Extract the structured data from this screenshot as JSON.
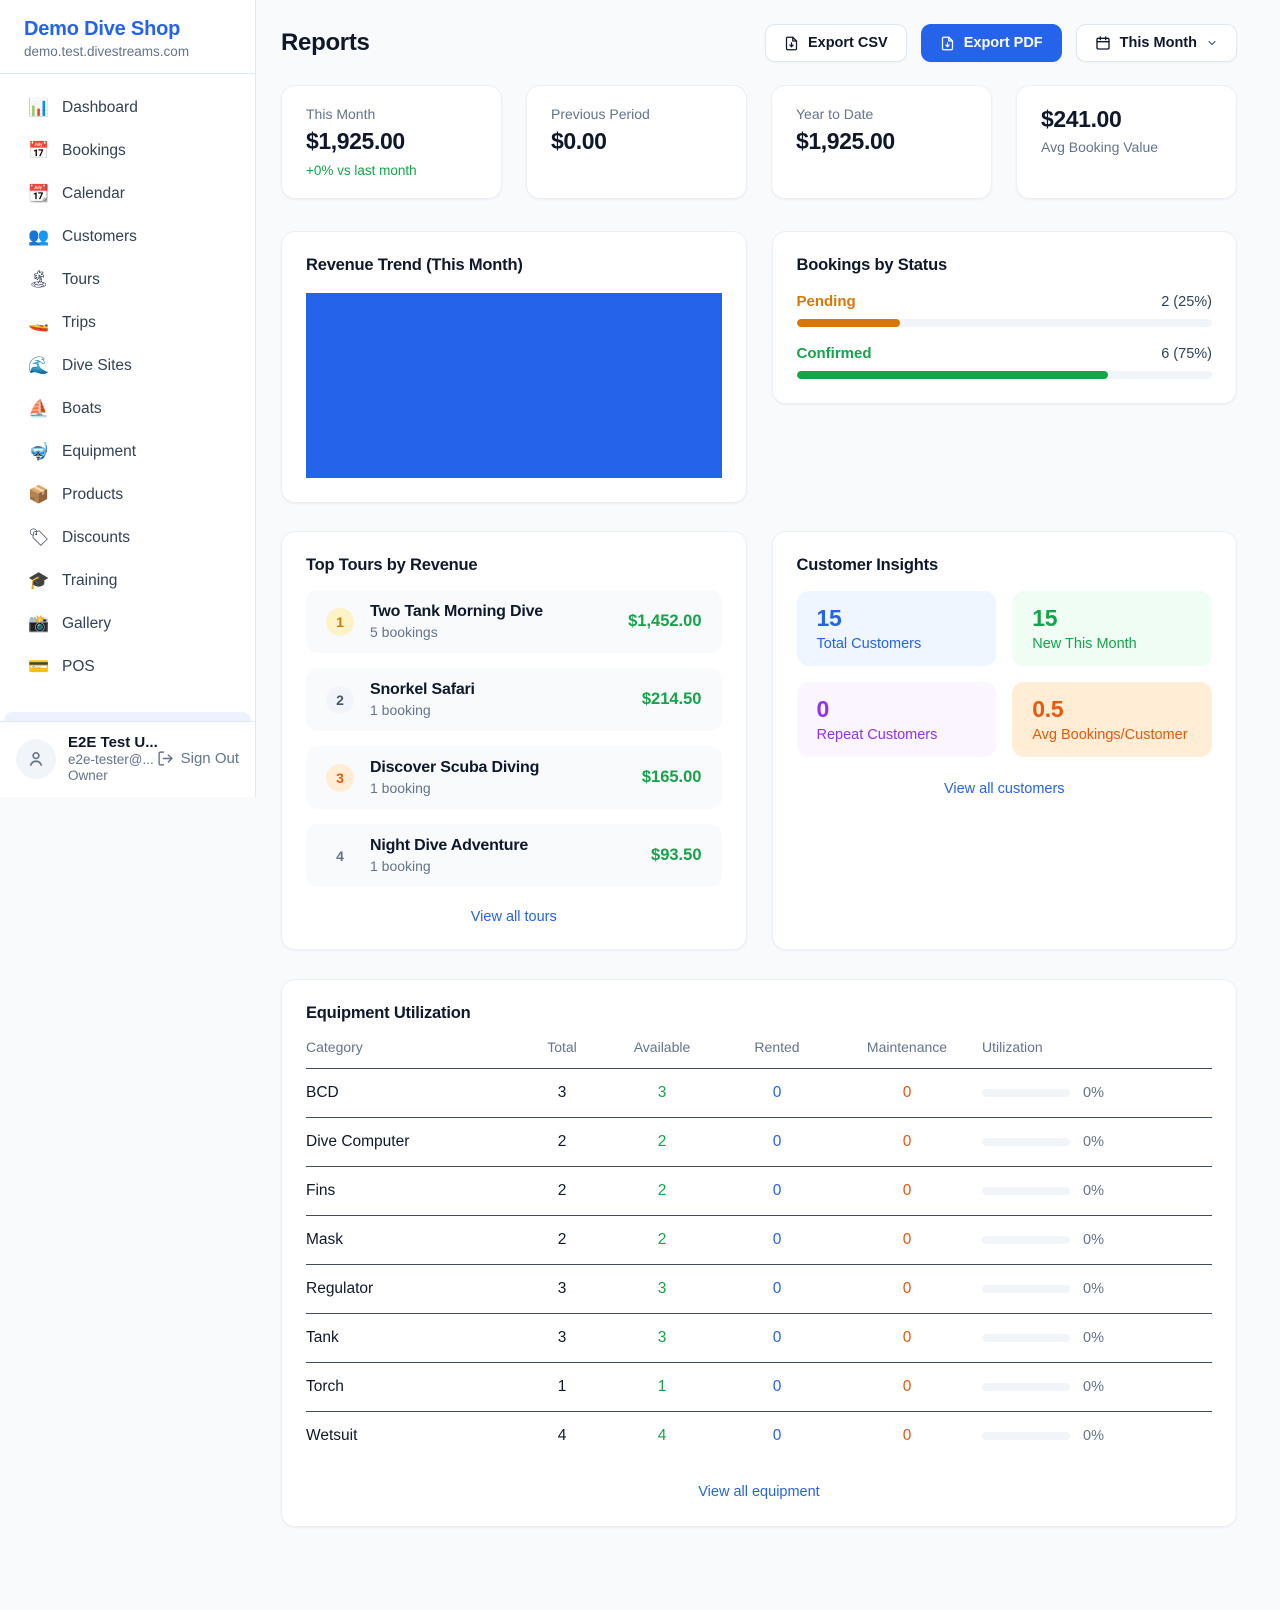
{
  "sidebar": {
    "brand": {
      "name": "Demo Dive Shop",
      "domain": "demo.test.divestreams.com"
    },
    "nav": [
      {
        "id": "dashboard",
        "icon": "📊",
        "label": "Dashboard"
      },
      {
        "id": "bookings",
        "icon": "📅",
        "label": "Bookings"
      },
      {
        "id": "calendar",
        "icon": "📆",
        "label": "Calendar"
      },
      {
        "id": "customers",
        "icon": "👥",
        "label": "Customers"
      },
      {
        "id": "tours",
        "icon": "🏝",
        "label": "Tours"
      },
      {
        "id": "trips",
        "icon": "🚤",
        "label": "Trips"
      },
      {
        "id": "dive-sites",
        "icon": "🌊",
        "label": "Dive Sites"
      },
      {
        "id": "boats",
        "icon": "⛵",
        "label": "Boats"
      },
      {
        "id": "equipment",
        "icon": "🤿",
        "label": "Equipment"
      },
      {
        "id": "products",
        "icon": "📦",
        "label": "Products"
      },
      {
        "id": "discounts",
        "icon": "🏷",
        "label": "Discounts"
      },
      {
        "id": "training",
        "icon": "🎓",
        "label": "Training"
      },
      {
        "id": "gallery",
        "icon": "📸",
        "label": "Gallery"
      },
      {
        "id": "pos",
        "icon": "💳",
        "label": "POS"
      }
    ],
    "user": {
      "name": "E2E Test U...",
      "email": "e2e-tester@...",
      "role": "Owner",
      "sign_out": "Sign Out"
    }
  },
  "header": {
    "title": "Reports",
    "export_csv": "Export CSV",
    "export_pdf": "Export PDF",
    "period": "This Month"
  },
  "stats": [
    {
      "label": "This Month",
      "value": "$1,925.00",
      "delta": "+0% vs last month"
    },
    {
      "label": "Previous Period",
      "value": "$0.00"
    },
    {
      "label": "Year to Date",
      "value": "$1,925.00"
    },
    {
      "value": "$241.00",
      "label": "Avg Booking Value"
    }
  ],
  "revenue_trend": {
    "title": "Revenue Trend (This Month)",
    "fill_color": "#2563EB"
  },
  "bookings_by_status": {
    "title": "Bookings by Status",
    "rows": [
      {
        "label": "Pending",
        "value_text": "2 (25%)",
        "pct": 25,
        "color": "#D97706"
      },
      {
        "label": "Confirmed",
        "value_text": "6 (75%)",
        "pct": 75,
        "color": "#16A34A"
      }
    ]
  },
  "top_tours": {
    "title": "Top Tours by Revenue",
    "view_all": "View all tours",
    "items": [
      {
        "rank": "1",
        "name": "Two Tank Morning Dive",
        "bookings": "5 bookings",
        "revenue": "$1,452.00",
        "badge_bg": "#FEF3C7",
        "badge_color": "#D97706"
      },
      {
        "rank": "2",
        "name": "Snorkel Safari",
        "bookings": "1 booking",
        "revenue": "$214.50",
        "badge_bg": "#F1F5F9",
        "badge_color": "#475569"
      },
      {
        "rank": "3",
        "name": "Discover Scuba Diving",
        "bookings": "1 booking",
        "revenue": "$165.00",
        "badge_bg": "#FFEDD5",
        "badge_color": "#EA580C"
      },
      {
        "rank": "4",
        "name": "Night Dive Adventure",
        "bookings": "1 booking",
        "revenue": "$93.50",
        "badge_bg": "transparent",
        "badge_color": "#64748B"
      }
    ]
  },
  "customer_insights": {
    "title": "Customer Insights",
    "view_all": "View all customers",
    "tiles": [
      {
        "value": "15",
        "label": "Total Customers",
        "color": "#2563EB",
        "bg": "#EFF6FF"
      },
      {
        "value": "15",
        "label": "New This Month",
        "color": "#16A34A",
        "bg": "#F0FDF4"
      },
      {
        "value": "0",
        "label": "Repeat Customers",
        "color": "#9333EA",
        "bg": "#FAF5FF"
      },
      {
        "value": "0.5",
        "label": "Avg Bookings/Customer",
        "color": "#EA580C",
        "bg": "#FFEDD5"
      }
    ]
  },
  "equipment": {
    "title": "Equipment Utilization",
    "view_all": "View all equipment",
    "columns": [
      "Category",
      "Total",
      "Available",
      "Rented",
      "Maintenance",
      "Utilization"
    ],
    "rows": [
      {
        "category": "BCD",
        "total": "3",
        "available": "3",
        "rented": "0",
        "maintenance": "0",
        "utilization": "0%"
      },
      {
        "category": "Dive Computer",
        "total": "2",
        "available": "2",
        "rented": "0",
        "maintenance": "0",
        "utilization": "0%"
      },
      {
        "category": "Fins",
        "total": "2",
        "available": "2",
        "rented": "0",
        "maintenance": "0",
        "utilization": "0%"
      },
      {
        "category": "Mask",
        "total": "2",
        "available": "2",
        "rented": "0",
        "maintenance": "0",
        "utilization": "0%"
      },
      {
        "category": "Regulator",
        "total": "3",
        "available": "3",
        "rented": "0",
        "maintenance": "0",
        "utilization": "0%"
      },
      {
        "category": "Tank",
        "total": "3",
        "available": "3",
        "rented": "0",
        "maintenance": "0",
        "utilization": "0%"
      },
      {
        "category": "Torch",
        "total": "1",
        "available": "1",
        "rented": "0",
        "maintenance": "0",
        "utilization": "0%"
      },
      {
        "category": "Wetsuit",
        "total": "4",
        "available": "4",
        "rented": "0",
        "maintenance": "0",
        "utilization": "0%"
      }
    ]
  }
}
